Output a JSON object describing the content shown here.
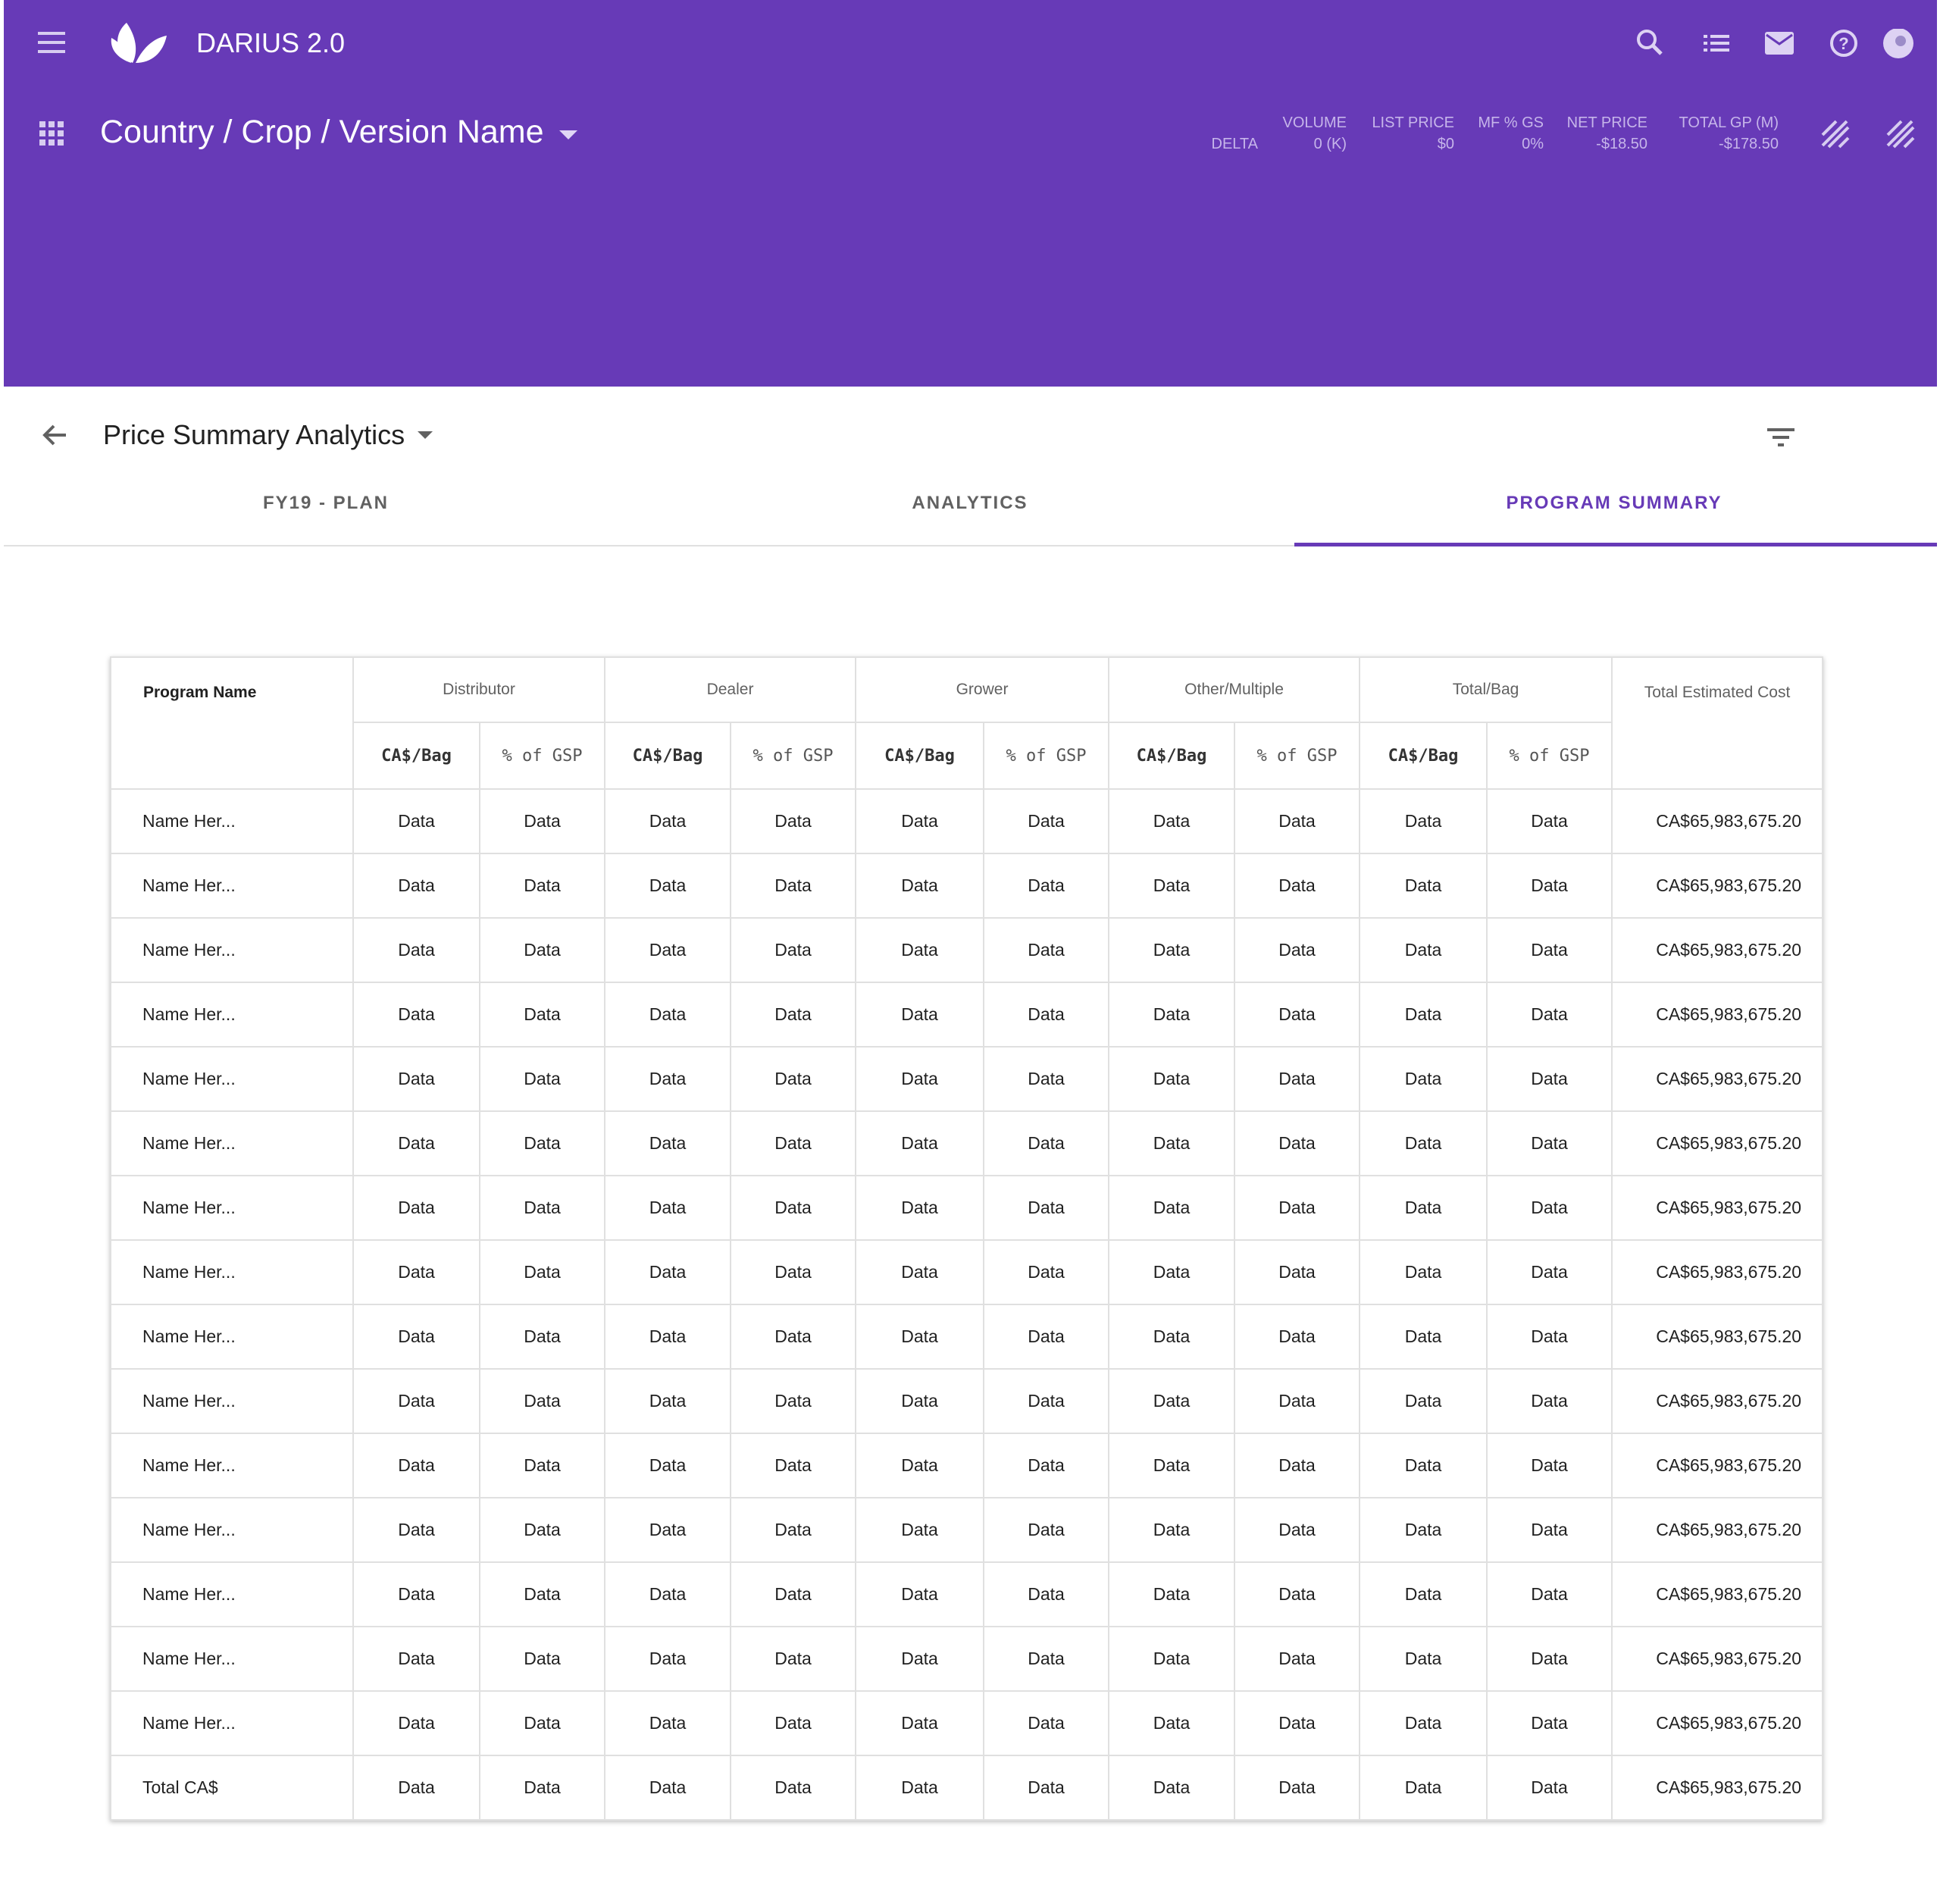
{
  "header": {
    "app_name": "DARIUS 2.0",
    "breadcrumb": "Country / Crop / Version Name"
  },
  "stats": {
    "row_label": "DELTA",
    "items": [
      {
        "label": "VOLUME",
        "value": "0 (K)"
      },
      {
        "label": "LIST PRICE",
        "value": "$0"
      },
      {
        "label": "MF % GS",
        "value": "0%"
      },
      {
        "label": "NET PRICE",
        "value": "-$18.50"
      },
      {
        "label": "TOTAL GP (M)",
        "value": "-$178.50"
      }
    ]
  },
  "page_title": "Price Summary Analytics",
  "tabs": [
    {
      "label": "FY19 - PLAN"
    },
    {
      "label": "ANALYTICS"
    },
    {
      "label": "PROGRAM SUMMARY",
      "active": true
    }
  ],
  "table": {
    "first_column": "Program Name",
    "groups": [
      {
        "name": "Distributor",
        "sub": [
          "CA$/Bag",
          "% of GSP"
        ]
      },
      {
        "name": "Dealer",
        "sub": [
          "CA$/Bag",
          "% of GSP"
        ]
      },
      {
        "name": "Grower",
        "sub": [
          "CA$/Bag",
          "% of GSP"
        ]
      },
      {
        "name": "Other/Multiple",
        "sub": [
          "CA$/Bag",
          "% of GSP"
        ]
      },
      {
        "name": "Total/Bag",
        "sub": [
          "CA$/Bag",
          "% of GSP"
        ]
      }
    ],
    "last_column": "Total Estimated Cost",
    "rows": [
      [
        "Name Her...",
        "Data",
        "Data",
        "Data",
        "Data",
        "Data",
        "Data",
        "Data",
        "Data",
        "Data",
        "Data",
        "CA$65,983,675.20"
      ],
      [
        "Name Her...",
        "Data",
        "Data",
        "Data",
        "Data",
        "Data",
        "Data",
        "Data",
        "Data",
        "Data",
        "Data",
        "CA$65,983,675.20"
      ],
      [
        "Name Her...",
        "Data",
        "Data",
        "Data",
        "Data",
        "Data",
        "Data",
        "Data",
        "Data",
        "Data",
        "Data",
        "CA$65,983,675.20"
      ],
      [
        "Name Her...",
        "Data",
        "Data",
        "Data",
        "Data",
        "Data",
        "Data",
        "Data",
        "Data",
        "Data",
        "Data",
        "CA$65,983,675.20"
      ],
      [
        "Name Her...",
        "Data",
        "Data",
        "Data",
        "Data",
        "Data",
        "Data",
        "Data",
        "Data",
        "Data",
        "Data",
        "CA$65,983,675.20"
      ],
      [
        "Name Her...",
        "Data",
        "Data",
        "Data",
        "Data",
        "Data",
        "Data",
        "Data",
        "Data",
        "Data",
        "Data",
        "CA$65,983,675.20"
      ],
      [
        "Name Her...",
        "Data",
        "Data",
        "Data",
        "Data",
        "Data",
        "Data",
        "Data",
        "Data",
        "Data",
        "Data",
        "CA$65,983,675.20"
      ],
      [
        "Name Her...",
        "Data",
        "Data",
        "Data",
        "Data",
        "Data",
        "Data",
        "Data",
        "Data",
        "Data",
        "Data",
        "CA$65,983,675.20"
      ],
      [
        "Name Her...",
        "Data",
        "Data",
        "Data",
        "Data",
        "Data",
        "Data",
        "Data",
        "Data",
        "Data",
        "Data",
        "CA$65,983,675.20"
      ],
      [
        "Name Her...",
        "Data",
        "Data",
        "Data",
        "Data",
        "Data",
        "Data",
        "Data",
        "Data",
        "Data",
        "Data",
        "CA$65,983,675.20"
      ],
      [
        "Name Her...",
        "Data",
        "Data",
        "Data",
        "Data",
        "Data",
        "Data",
        "Data",
        "Data",
        "Data",
        "Data",
        "CA$65,983,675.20"
      ],
      [
        "Name Her...",
        "Data",
        "Data",
        "Data",
        "Data",
        "Data",
        "Data",
        "Data",
        "Data",
        "Data",
        "Data",
        "CA$65,983,675.20"
      ],
      [
        "Name Her...",
        "Data",
        "Data",
        "Data",
        "Data",
        "Data",
        "Data",
        "Data",
        "Data",
        "Data",
        "Data",
        "CA$65,983,675.20"
      ],
      [
        "Name Her...",
        "Data",
        "Data",
        "Data",
        "Data",
        "Data",
        "Data",
        "Data",
        "Data",
        "Data",
        "Data",
        "CA$65,983,675.20"
      ],
      [
        "Name Her...",
        "Data",
        "Data",
        "Data",
        "Data",
        "Data",
        "Data",
        "Data",
        "Data",
        "Data",
        "Data",
        "CA$65,983,675.20"
      ],
      [
        "Total CA$",
        "Data",
        "Data",
        "Data",
        "Data",
        "Data",
        "Data",
        "Data",
        "Data",
        "Data",
        "Data",
        "CA$65,983,675.20"
      ]
    ]
  }
}
